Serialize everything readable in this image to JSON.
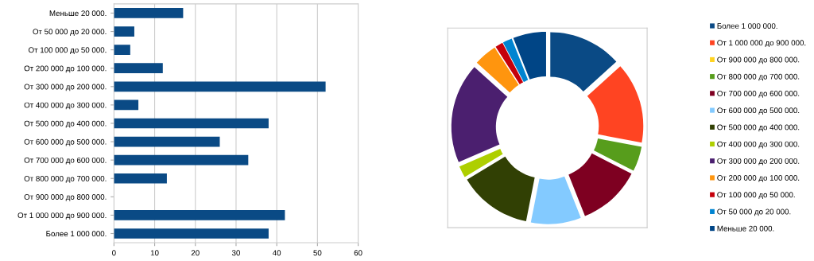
{
  "chart_data": [
    {
      "type": "bar",
      "orientation": "horizontal",
      "categories": [
        "Меньше 20 000.",
        "От 50 000 до 20 000.",
        "От 100 000 до 50 000.",
        "От 200 000 до 100 000.",
        "От 300 000 до 200 000.",
        "От 400 000 до 300 000.",
        "От 500 000 до 400 000.",
        "От 600 000 до 500 000.",
        "От 700 000 до 600 000.",
        "От 800 000 до 700 000.",
        "От 900 000 до 800 000.",
        "От 1 000 000 до 900 000.",
        "Более 1 000 000."
      ],
      "values": [
        17,
        5,
        4,
        12,
        52,
        6,
        38,
        26,
        33,
        13,
        0,
        42,
        38
      ],
      "color": "#0a4a85",
      "xlim": [
        0,
        60
      ],
      "xticks": [
        0,
        10,
        20,
        30,
        40,
        50,
        60
      ],
      "grid": "x",
      "legend": false
    },
    {
      "type": "donut",
      "categories": [
        "Более 1 000 000.",
        "От 1 000 000 до 900 000.",
        "От 900 000 до 800 000.",
        "От 800 000 до 700 000.",
        "От 700 000 до 600 000.",
        "От 600 000 до 500 000.",
        "От 500 000 до 400 000.",
        "От 400 000 до 300 000.",
        "От 300 000 до 200 000.",
        "От 200 000 до 100 000.",
        "От 100 000 до 50 000.",
        "От 50 000 до 20 000.",
        "Меньше 20 000."
      ],
      "values": [
        13.3,
        14.7,
        0,
        4.5,
        11.5,
        9.1,
        13.3,
        2.1,
        18.2,
        4.2,
        1.4,
        1.7,
        6.0
      ],
      "colors": [
        "#0a4a85",
        "#ff4422",
        "#ffd320",
        "#579d1c",
        "#7e0021",
        "#83caff",
        "#314004",
        "#aecf00",
        "#4b1f6f",
        "#ff950e",
        "#c5000b",
        "#0084d1",
        "#004586"
      ],
      "legend": "right"
    }
  ]
}
